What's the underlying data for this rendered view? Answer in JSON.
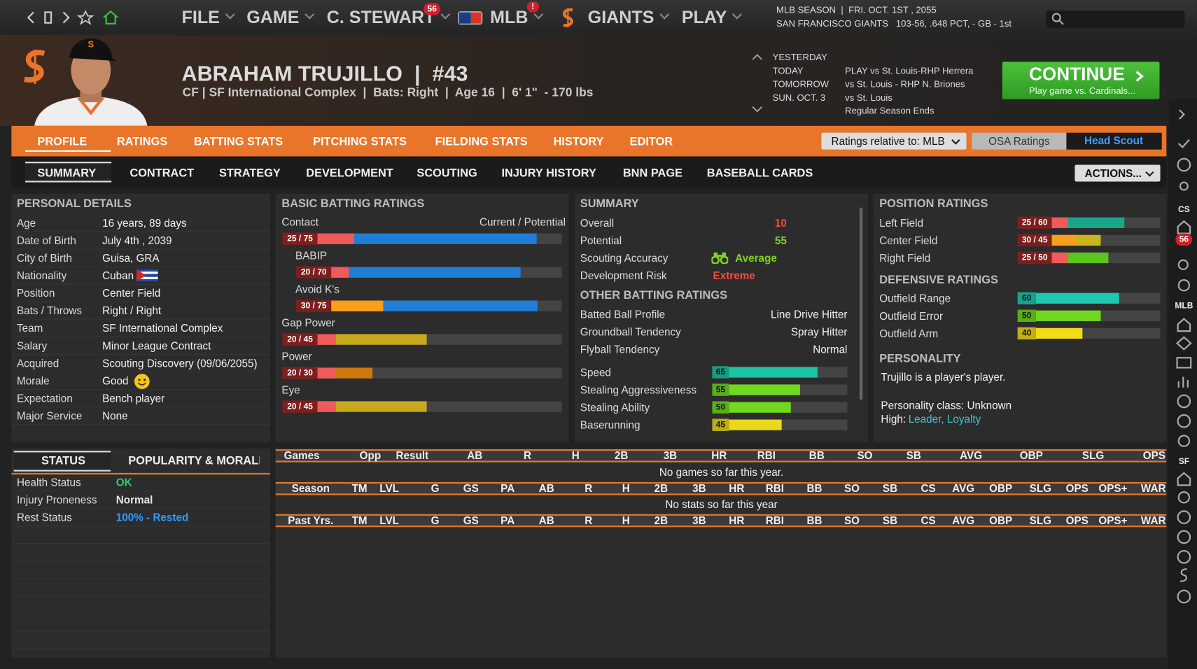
{
  "top_nav": {
    "menus": [
      "FILE",
      "GAME",
      "C. STEWART",
      "MLB",
      "GIANTS",
      "PLAY"
    ],
    "manager_badge": "56",
    "mlb_badge": "!",
    "season": "MLB SEASON  |  FRI. OCT. 1ST , 2055",
    "team_record": "SAN FRANCISCO GIANTS   103-56, .648 PCT, - GB - 1st"
  },
  "player": {
    "name": "ABRAHAM TRUJILLO  |  #43",
    "info": "CF | SF International Complex  |  Bats: Right  |  Age 16  |  6' 1\"  - 170 lbs"
  },
  "schedule": {
    "days": [
      "YESTERDAY",
      "TODAY",
      "TOMORROW",
      "SUN. OCT. 3"
    ],
    "events": [
      "PLAY vs St. Louis-RHP Herrera",
      "vs St. Louis - RHP N. Briones",
      "vs St. Louis",
      "Regular Season Ends"
    ]
  },
  "continue_button": {
    "label": "CONTINUE",
    "sub": "Play game vs. Cardinals..."
  },
  "main_tabs": {
    "items": [
      "PROFILE",
      "RATINGS",
      "BATTING STATS",
      "PITCHING STATS",
      "FIELDING STATS",
      "HISTORY",
      "EDITOR"
    ],
    "active": 0
  },
  "rating_controls": {
    "relative": "Ratings relative to: MLB",
    "osa": "OSA Ratings",
    "scout": "Head Scout"
  },
  "sub_tabs": {
    "items": [
      "SUMMARY",
      "CONTRACT",
      "STRATEGY",
      "DEVELOPMENT",
      "SCOUTING",
      "INJURY HISTORY",
      "BNN PAGE",
      "BASEBALL CARDS"
    ],
    "active": 0,
    "actions": "ACTIONS..."
  },
  "personal_details": {
    "title": "PERSONAL DETAILS",
    "rows": [
      [
        "Age",
        "16 years, 89 days"
      ],
      [
        "Date of Birth",
        "July 4th , 2039"
      ],
      [
        "City of Birth",
        "Guisa, GRA"
      ],
      [
        "Nationality",
        "Cuban"
      ],
      [
        "Position",
        "Center Field"
      ],
      [
        "Bats / Throws",
        "Right / Right"
      ],
      [
        "Team",
        "SF International Complex"
      ],
      [
        "Salary",
        "Minor League Contract"
      ],
      [
        "Acquired",
        "Scouting Discovery (09/06/2055)"
      ],
      [
        "Morale",
        "Good"
      ],
      [
        "Expectation",
        "Bench player"
      ],
      [
        "Major Service",
        "None"
      ]
    ]
  },
  "basic_batting": {
    "title": "BASIC BATTING RATINGS",
    "header": "Current / Potential",
    "ratings": [
      {
        "name": "Contact",
        "label": "25 / 75",
        "current": 25,
        "potential": 75,
        "current_color": "#f05a5a",
        "potential_color": "#1f7fd6"
      },
      {
        "name": "BABIP",
        "label": "20 / 70",
        "current": 20,
        "potential": 70,
        "current_color": "#f05a5a",
        "potential_color": "#1f7fd6"
      },
      {
        "name": "Avoid K's",
        "label": "30 / 75",
        "current": 30,
        "potential": 75,
        "current_color": "#f7a01b",
        "potential_color": "#1f7fd6"
      },
      {
        "name": "Gap Power",
        "label": "20 / 45",
        "current": 20,
        "potential": 45,
        "current_color": "#f05a5a",
        "potential_color": "#c9a91c"
      },
      {
        "name": "Power",
        "label": "20 / 30",
        "current": 20,
        "potential": 30,
        "current_color": "#f05a5a",
        "potential_color": "#d0780e"
      },
      {
        "name": "Eye",
        "label": "20 / 45",
        "current": 20,
        "potential": 45,
        "current_color": "#f05a5a",
        "potential_color": "#c9a91c"
      }
    ]
  },
  "summary": {
    "title": "SUMMARY",
    "rows": [
      {
        "label": "Overall",
        "value": 10,
        "color": "#ff4a3a"
      },
      {
        "label": "Potential",
        "value": 55,
        "color": "#7ed321"
      },
      {
        "label": "Scouting Accuracy",
        "value": "Average",
        "color": "#7ed321"
      },
      {
        "label": "Development Risk",
        "value": "Extreme",
        "color": "#ff4a3a"
      }
    ]
  },
  "other_batting": {
    "title": "OTHER BATTING RATINGS",
    "text_rows": [
      [
        "Batted Ball Profile",
        "Line Drive Hitter"
      ],
      [
        "Groundball Tendency",
        "Spray Hitter"
      ],
      [
        "Flyball Tendency",
        "Normal"
      ]
    ],
    "bar_rows": [
      {
        "name": "Speed",
        "value": 65,
        "color": "#19c4a4"
      },
      {
        "name": "Stealing Aggressiveness",
        "value": 55,
        "color": "#6fd81f"
      },
      {
        "name": "Stealing Ability",
        "value": 50,
        "color": "#6fd81f"
      },
      {
        "name": "Baserunning",
        "value": 45,
        "color": "#ead81a"
      }
    ]
  },
  "position_ratings": {
    "title": "POSITION RATINGS",
    "rows": [
      {
        "name": "Left Field",
        "label": "25 / 60",
        "current": 25,
        "potential": 60,
        "current_color": "#f05a5a",
        "potential_color": "#17a88a"
      },
      {
        "name": "Center Field",
        "label": "30 / 45",
        "current": 30,
        "potential": 45,
        "current_color": "#f7a01b",
        "potential_color": "#c9b51c"
      },
      {
        "name": "Right Field",
        "label": "25 / 50",
        "current": 25,
        "potential": 50,
        "current_color": "#f05a5a",
        "potential_color": "#5dc41f"
      }
    ],
    "defensive_title": "DEFENSIVE RATINGS",
    "defensive": [
      {
        "name": "Outfield Range",
        "value": 60,
        "color": "#1fc8b0"
      },
      {
        "name": "Outfield Error",
        "value": 50,
        "color": "#6fd81f"
      },
      {
        "name": "Outfield Arm",
        "value": 40,
        "color": "#f2dc1a"
      }
    ]
  },
  "personality": {
    "title": "PERSONALITY",
    "text": "Trujillo is a player's player.",
    "class": "Personality class: Unknown",
    "high_label": "High:",
    "high": "Leader, Loyalty"
  },
  "status": {
    "tabs": [
      "STATUS",
      "POPULARITY & MORALE"
    ],
    "rows": [
      {
        "label": "Health Status",
        "value": "OK",
        "color": "#2ecc71"
      },
      {
        "label": "Injury Proneness",
        "value": "Normal",
        "color": "#e6e6e6"
      },
      {
        "label": "Rest Status",
        "value": "100% - Rested",
        "color": "#2e9bff"
      }
    ]
  },
  "stats": {
    "game_columns": [
      "Games",
      "Opp",
      "Result",
      "AB",
      "R",
      "H",
      "2B",
      "3B",
      "HR",
      "RBI",
      "BB",
      "SO",
      "SB",
      "AVG",
      "OBP",
      "SLG",
      "OPS"
    ],
    "game_empty": "No games so far this year.",
    "season_columns": [
      "Season",
      "TM",
      "LVL",
      "G",
      "GS",
      "PA",
      "AB",
      "R",
      "H",
      "2B",
      "3B",
      "HR",
      "RBI",
      "BB",
      "SO",
      "SB",
      "CS",
      "AVG",
      "OBP",
      "SLG",
      "OPS",
      "OPS+",
      "WAR"
    ],
    "season_empty": "No stats so far this year",
    "past_columns": [
      "Past Yrs.",
      "TM",
      "LVL",
      "G",
      "GS",
      "PA",
      "AB",
      "R",
      "H",
      "2B",
      "3B",
      "HR",
      "RBI",
      "BB",
      "SO",
      "SB",
      "CS",
      "AVG",
      "OBP",
      "SLG",
      "OPS",
      "OPS+",
      "WAR"
    ]
  },
  "sidebar": {
    "labels": [
      "CS",
      "MLB",
      "SF"
    ],
    "badge": "56"
  }
}
